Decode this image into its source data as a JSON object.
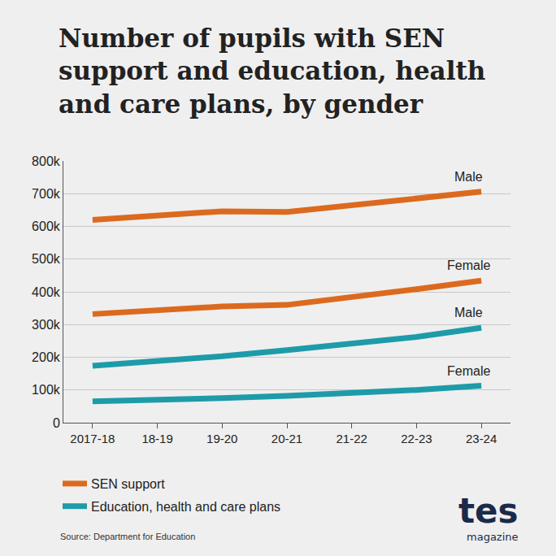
{
  "chart_data": {
    "type": "line",
    "title": "Number of pupils with SEN\nsupport and education, health\nand care plans, by gender",
    "categories": [
      "2017-18",
      "18-19",
      "19-20",
      "20-21",
      "21-22",
      "22-23",
      "23-24"
    ],
    "series": [
      {
        "name": "Male",
        "group": "SEN support",
        "color": "#dc6a1e",
        "values": [
          620000,
          633000,
          646000,
          644000,
          664000,
          687000,
          706000
        ]
      },
      {
        "name": "Female",
        "group": "SEN support",
        "color": "#dc6a1e",
        "values": [
          332000,
          342000,
          355000,
          360000,
          382000,
          408000,
          434000
        ]
      },
      {
        "name": "Male",
        "group": "Education, health and care plans",
        "color": "#1e9ba8",
        "values": [
          174000,
          187000,
          203000,
          222000,
          240000,
          262000,
          290000
        ]
      },
      {
        "name": "Female",
        "group": "Education, health and care plans",
        "color": "#1e9ba8",
        "values": [
          65000,
          69000,
          75000,
          82000,
          90000,
          100000,
          113000
        ]
      }
    ],
    "ylim": [
      0,
      800000
    ],
    "yticks": [
      0,
      {
        "value": 100000,
        "label": "100k"
      },
      {
        "value": 200000,
        "label": "200k"
      },
      {
        "value": 300000,
        "label": "300k"
      },
      {
        "value": 400000,
        "label": "400k"
      },
      {
        "value": 500000,
        "label": "500k"
      },
      {
        "value": 600000,
        "label": "600k"
      },
      {
        "value": 700000,
        "label": "700k"
      },
      {
        "value": 800000,
        "label": "800k"
      }
    ],
    "grid": true,
    "legend": "bottom",
    "source": "Source: Department for Education",
    "logo": {
      "name": "tes",
      "subtitle": "magazine"
    }
  }
}
